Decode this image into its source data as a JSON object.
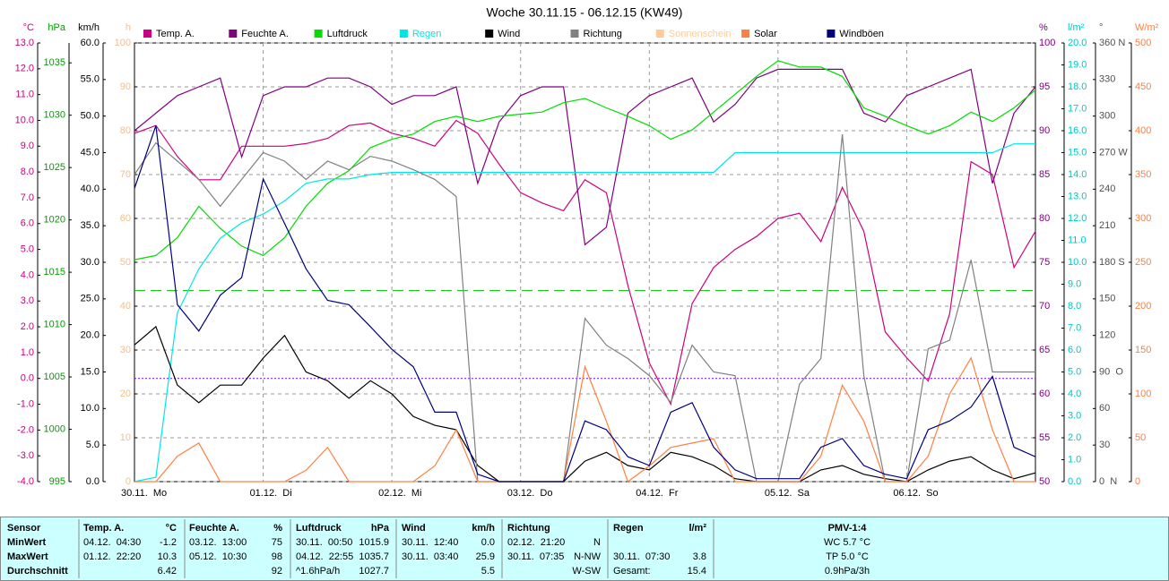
{
  "chart_data": {
    "type": "line",
    "title": "Woche 30.11.15 - 06.12.15 (KW49)",
    "x": [
      0,
      4,
      8,
      12,
      16,
      20,
      24,
      28,
      32,
      36,
      40,
      44,
      48,
      52,
      56,
      60,
      64,
      68,
      72,
      76,
      80,
      84,
      88,
      92,
      96,
      100,
      104,
      108,
      112,
      116,
      120,
      124,
      128,
      132,
      136,
      140,
      144,
      148,
      152,
      156,
      160,
      164,
      168
    ],
    "xlim": [
      0,
      168
    ],
    "xticks": [
      {
        "value": 0,
        "label": "30.11.  Mo"
      },
      {
        "value": 24,
        "label": "01.12.  Di"
      },
      {
        "value": 48,
        "label": "02.12.  Mi"
      },
      {
        "value": 72,
        "label": "03.12.  Do"
      },
      {
        "value": 96,
        "label": "04.12.  Fr"
      },
      {
        "value": 120,
        "label": "05.12.  Sa"
      },
      {
        "value": 144,
        "label": "06.12.  So"
      }
    ],
    "grid": true,
    "axes": [
      {
        "unit": "°C",
        "side": "left",
        "color": "#cc0080",
        "ylim": [
          -4,
          13
        ],
        "yticks": [
          {
            "value": 13,
            "label": "13.0"
          },
          {
            "value": 12,
            "label": "12.0"
          },
          {
            "value": 11,
            "label": "11.0"
          },
          {
            "value": 10,
            "label": "10.0"
          },
          {
            "value": 9,
            "label": "9.0"
          },
          {
            "value": 8,
            "label": "8.0"
          },
          {
            "value": 7,
            "label": "7.0"
          },
          {
            "value": 6,
            "label": "6.0"
          },
          {
            "value": 5,
            "label": "5.0"
          },
          {
            "value": 4,
            "label": "4.0"
          },
          {
            "value": 3,
            "label": "3.0"
          },
          {
            "value": 2,
            "label": "2.0"
          },
          {
            "value": 1,
            "label": "1.0"
          },
          {
            "value": 0,
            "label": "0.0"
          },
          {
            "value": -1,
            "label": "-1.0"
          },
          {
            "value": -2,
            "label": "-2.0"
          },
          {
            "value": -3,
            "label": "-3.0"
          },
          {
            "value": -4,
            "label": "-4.0"
          }
        ]
      },
      {
        "unit": "hPa",
        "side": "left",
        "color": "#00a000",
        "ylim": [
          995,
          1036.9
        ],
        "yticks": [
          1035,
          1030,
          1025,
          1020,
          1015,
          1010,
          1005,
          1000,
          995
        ]
      },
      {
        "unit": "km/h",
        "side": "left",
        "color": "#000000",
        "ylim": [
          0,
          60
        ],
        "yticks": [
          {
            "value": 60,
            "label": "60.0"
          },
          {
            "value": 55,
            "label": "55.0"
          },
          {
            "value": 50,
            "label": "50.0"
          },
          {
            "value": 45,
            "label": "45.0"
          },
          {
            "value": 40,
            "label": "40.0"
          },
          {
            "value": 35,
            "label": "35.0"
          },
          {
            "value": 30,
            "label": "30.0"
          },
          {
            "value": 25,
            "label": "25.0"
          },
          {
            "value": 20,
            "label": "20.0"
          },
          {
            "value": 15,
            "label": "15.0"
          },
          {
            "value": 10,
            "label": "10.0"
          },
          {
            "value": 5,
            "label": "5.0"
          },
          {
            "value": 0,
            "label": "0.0"
          }
        ]
      },
      {
        "unit": "h",
        "side": "left",
        "color": "#f0c090",
        "grid": true,
        "ylim": [
          0,
          100
        ],
        "yticks": [
          100,
          90,
          80,
          70,
          60,
          50,
          40,
          30,
          20,
          10,
          0
        ]
      },
      {
        "unit": "%",
        "side": "right",
        "color": "#800080",
        "ylim": [
          50,
          100
        ],
        "yticks": [
          100,
          95,
          90,
          85,
          80,
          75,
          70,
          65,
          60,
          55,
          50
        ]
      },
      {
        "unit": "l/m²",
        "side": "right",
        "color": "#00c8c8",
        "ylim": [
          0,
          20
        ],
        "yticks": [
          {
            "value": 20,
            "label": "20.0"
          },
          {
            "value": 19,
            "label": "19.0"
          },
          {
            "value": 18,
            "label": "18.0"
          },
          {
            "value": 17,
            "label": "17.0"
          },
          {
            "value": 16,
            "label": "16.0"
          },
          {
            "value": 15,
            "label": "15.0"
          },
          {
            "value": 14,
            "label": "14.0"
          },
          {
            "value": 13,
            "label": "13.0"
          },
          {
            "value": 12,
            "label": "12.0"
          },
          {
            "value": 11,
            "label": "11.0"
          },
          {
            "value": 10,
            "label": "10.0"
          },
          {
            "value": 9,
            "label": "9.0"
          },
          {
            "value": 8,
            "label": "8.0"
          },
          {
            "value": 7,
            "label": "7.0"
          },
          {
            "value": 6,
            "label": "6.0"
          },
          {
            "value": 5,
            "label": "5.0"
          },
          {
            "value": 4,
            "label": "4.0"
          },
          {
            "value": 3,
            "label": "3.0"
          },
          {
            "value": 2,
            "label": "2.0"
          },
          {
            "value": 1,
            "label": "1.0"
          },
          {
            "value": 0,
            "label": "0.0"
          }
        ]
      },
      {
        "unit": "°",
        "side": "right",
        "color": "#505050",
        "ylim": [
          0,
          360
        ],
        "yticks": [
          {
            "value": 360,
            "label": "360 N"
          },
          330,
          300,
          {
            "value": 270,
            "label": "270 W"
          },
          240,
          210,
          {
            "value": 180,
            "label": "180 S"
          },
          150,
          120,
          {
            "value": 90,
            "label": "90  O"
          },
          60,
          30,
          {
            "value": 0,
            "label": "0  N"
          }
        ]
      },
      {
        "unit": "W/m²",
        "side": "right",
        "color": "#ff8040",
        "ylim": [
          0,
          500
        ],
        "yticks": [
          500,
          450,
          400,
          350,
          300,
          250,
          200,
          150,
          100,
          50,
          0
        ]
      }
    ],
    "reference_lines": [
      {
        "axis": 1,
        "value": 1013.25,
        "color": "#00c000",
        "dash": "12 6"
      },
      {
        "axis": 0,
        "value": 0,
        "color": "#8000ff",
        "dash": "2 2"
      }
    ],
    "series": [
      {
        "name": "Temp. A.",
        "color": "#cc0080",
        "axis": 0,
        "values": [
          9.5,
          9.8,
          8.6,
          7.7,
          7.7,
          9.0,
          9.0,
          9.0,
          9.1,
          9.3,
          9.8,
          9.9,
          9.5,
          9.3,
          9.0,
          10.0,
          9.5,
          8.3,
          7.2,
          6.8,
          6.5,
          7.7,
          7.2,
          3.6,
          0.6,
          -1.0,
          2.9,
          4.3,
          5.0,
          5.5,
          6.2,
          6.4,
          5.3,
          7.4,
          5.7,
          1.8,
          0.8,
          -0.1,
          2.5,
          8.4,
          7.9,
          4.3,
          5.7
        ]
      },
      {
        "name": "Feuchte A.",
        "color": "#800080",
        "axis": 4,
        "values": [
          90,
          92,
          94,
          95,
          96,
          87,
          94,
          95,
          95,
          96,
          96,
          95,
          93,
          94,
          94,
          95,
          84,
          91,
          94,
          95,
          95,
          77,
          79,
          92,
          94,
          95,
          96,
          91,
          93,
          96,
          97,
          97,
          97,
          97,
          92,
          91,
          94,
          95,
          96,
          97,
          84,
          92,
          95
        ]
      },
      {
        "name": "Luftdruck",
        "color": "#00dd00",
        "axis": 1,
        "values": [
          1016.2,
          1016.6,
          1018.3,
          1021.3,
          1019.2,
          1017.5,
          1016.6,
          1018.3,
          1021.3,
          1023.5,
          1024.7,
          1026.9,
          1027.7,
          1028.2,
          1029.4,
          1029.9,
          1029.4,
          1029.9,
          1030.1,
          1030.3,
          1031.2,
          1031.6,
          1030.7,
          1029.9,
          1029.0,
          1027.7,
          1028.6,
          1030.3,
          1032.0,
          1033.7,
          1035.2,
          1034.6,
          1034.6,
          1033.7,
          1030.7,
          1029.9,
          1029.0,
          1028.2,
          1029.0,
          1030.3,
          1029.4,
          1030.7,
          1032.4
        ]
      },
      {
        "name": "Regen",
        "color": "#00e6e6",
        "axis": 5,
        "values": [
          0,
          0.2,
          7.7,
          9.7,
          11.1,
          11.8,
          12.2,
          12.8,
          13.6,
          13.8,
          13.8,
          14.0,
          14.1,
          14.1,
          14.1,
          14.1,
          14.1,
          14.1,
          14.1,
          14.1,
          14.1,
          14.1,
          14.1,
          14.1,
          14.1,
          14.1,
          14.1,
          14.1,
          15.0,
          15.0,
          15.0,
          15.0,
          15.0,
          15.0,
          15.0,
          15.0,
          15.0,
          15.0,
          15.0,
          15.0,
          15.0,
          15.4,
          15.4
        ]
      },
      {
        "name": "Wind",
        "color": "#000000",
        "axis": 2,
        "values": [
          18.7,
          21.2,
          13.2,
          10.8,
          13.2,
          13.2,
          16.9,
          20.0,
          15.0,
          13.8,
          11.4,
          13.8,
          12.0,
          8.9,
          7.7,
          7.1,
          2.2,
          0,
          0,
          0,
          0,
          2.8,
          4.0,
          2.2,
          1.6,
          4.0,
          3.4,
          2.2,
          0.4,
          0,
          0,
          0,
          1.6,
          2.2,
          1.0,
          0.4,
          0,
          1.6,
          2.8,
          3.4,
          1.6,
          0.4,
          1.2
        ]
      },
      {
        "name": "Richtung",
        "color": "#808080",
        "axis": 6,
        "values": [
          252,
          278,
          263,
          248,
          226,
          248,
          270,
          263,
          248,
          263,
          256,
          267,
          263,
          256,
          248,
          234,
          0,
          0,
          0,
          0,
          0,
          134,
          112,
          101,
          87,
          65,
          112,
          90,
          87,
          0,
          0,
          80,
          101,
          285,
          87,
          0,
          0,
          109,
          116,
          182,
          90,
          90,
          90
        ]
      },
      {
        "name": "Sonnenschein",
        "color": "#ffcc99",
        "axis": 3,
        "values": [
          null,
          null,
          null,
          null,
          null,
          null,
          null,
          null,
          null,
          null,
          null,
          null,
          null,
          null,
          null,
          null,
          null,
          null,
          null,
          null,
          null,
          null,
          null,
          null,
          null,
          null,
          null,
          null,
          null,
          null,
          null,
          null,
          null,
          null,
          null,
          null,
          null,
          null,
          null,
          null,
          null,
          null,
          null
        ]
      },
      {
        "name": "Solar",
        "color": "#ff8040",
        "axis": 7,
        "values": [
          0,
          0,
          29,
          44,
          0,
          0,
          0,
          0,
          13,
          39,
          0,
          0,
          0,
          0,
          18,
          59,
          0,
          0,
          0,
          0,
          0,
          131,
          69,
          0,
          18,
          39,
          44,
          49,
          0,
          0,
          0,
          0,
          29,
          110,
          69,
          0,
          0,
          29,
          100,
          141,
          59,
          0,
          0
        ]
      },
      {
        "name": "Windböen",
        "color": "#000080",
        "axis": 2,
        "values": [
          40.1,
          48.7,
          24.2,
          20.6,
          25.5,
          27.9,
          41.4,
          35.3,
          29.1,
          24.8,
          24.2,
          21.2,
          18.1,
          15.7,
          9.5,
          9.5,
          1.0,
          0,
          0,
          0,
          0,
          8.3,
          7.1,
          3.4,
          2.2,
          9.5,
          10.8,
          4.7,
          1.6,
          0.4,
          0.4,
          0.4,
          4.7,
          5.9,
          2.2,
          1.0,
          0.4,
          7.1,
          8.3,
          10.2,
          14.4,
          4.7,
          3.4
        ]
      }
    ]
  },
  "table": {
    "row_labels": [
      "Sensor",
      "MinWert",
      "MaxWert",
      "Durchschnitt"
    ],
    "groups": [
      {
        "header": "Temp. A.",
        "unit": "°C",
        "rows": [
          {
            "time": "04.12.  04:30",
            "value": "-1.2"
          },
          {
            "time": "01.12.  22:20",
            "value": "10.3"
          },
          {
            "value": "6.42"
          }
        ]
      },
      {
        "header": "Feuchte A.",
        "unit": "%",
        "rows": [
          {
            "time": "03.12.  13:00",
            "value": "75"
          },
          {
            "time": "05.12.  10:30",
            "value": "98"
          },
          {
            "value": "92"
          }
        ]
      },
      {
        "header": "Luftdruck",
        "unit": "hPa",
        "rows": [
          {
            "time": "30.11.  00:50",
            "value": "1015.9"
          },
          {
            "time": "04.12.  22:55",
            "value": "1035.7"
          },
          {
            "time": "^1.6hPa/h",
            "value": "1027.7"
          }
        ]
      },
      {
        "header": "Wind",
        "unit": "km/h",
        "rows": [
          {
            "time": "30.11.  12:40",
            "value": "0.0"
          },
          {
            "time": "30.11.  03:40",
            "value": "25.9"
          },
          {
            "value": "5.5"
          }
        ]
      },
      {
        "header": "Richtung",
        "rows": [
          {
            "time": "02.12.  21:20",
            "value": "N"
          },
          {
            "time": "30.11.  07:35",
            "value": "N-NW"
          },
          {
            "value": "W-SW"
          }
        ]
      },
      {
        "header": "Regen",
        "unit": "l/m²",
        "rows": [
          null,
          {
            "time": "30.11.  07:30",
            "value": "3.8"
          },
          {
            "time": "Gesamt:",
            "value": "15.4"
          }
        ]
      }
    ],
    "pmv": {
      "header": "PMV-1:4",
      "rows": [
        "WC 5.7 °C",
        "TP 5.0 °C",
        "0.9hPa/3h"
      ]
    }
  }
}
